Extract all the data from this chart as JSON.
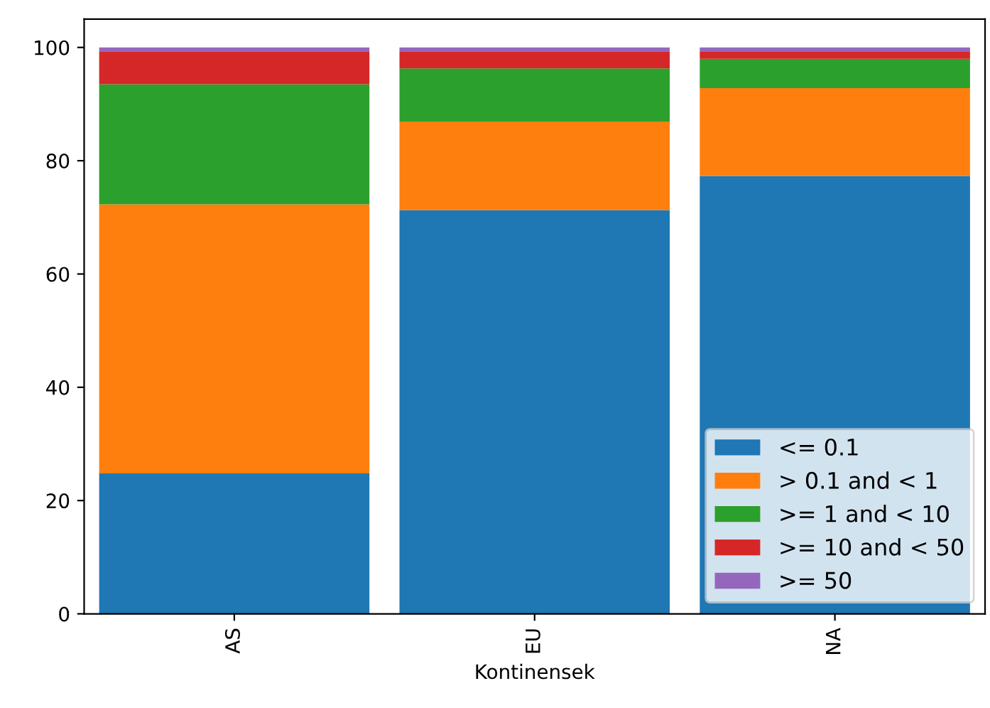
{
  "chart_data": {
    "type": "bar",
    "stacked": true,
    "xlabel": "Kontinensek",
    "categories": [
      "AS",
      "EU",
      "NA"
    ],
    "series": [
      {
        "name": "<= 0.1",
        "color": "#1f77b4",
        "values": [
          24.8,
          71.3,
          77.3
        ]
      },
      {
        "name": "> 0.1 and < 1",
        "color": "#ff7f0e",
        "values": [
          47.5,
          15.6,
          15.5
        ]
      },
      {
        "name": ">= 1 and < 10",
        "color": "#2ca02c",
        "values": [
          21.2,
          9.4,
          5.2
        ]
      },
      {
        "name": ">= 10 and < 50",
        "color": "#d62728",
        "values": [
          5.8,
          3.0,
          1.2
        ]
      },
      {
        "name": ">= 50",
        "color": "#9467bd",
        "values": [
          0.7,
          0.7,
          0.8
        ]
      }
    ],
    "ylim": [
      0,
      105
    ],
    "yticks": [
      0,
      20,
      40,
      60,
      80,
      100
    ],
    "legend": "bottom right",
    "grid": false
  }
}
